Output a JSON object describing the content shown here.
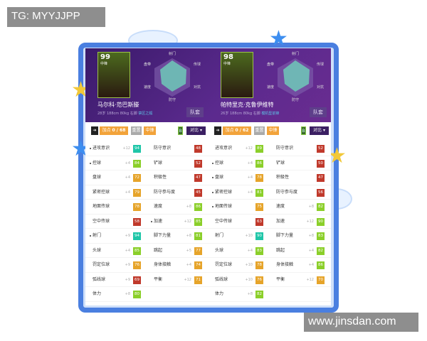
{
  "watermarks": {
    "top": "TG: MYYJJPP",
    "bottom": "www.jinsdan.com"
  },
  "colors": {
    "teal": "#1fc6a8",
    "green": "#8bcf2a",
    "orange": "#e6a42a",
    "red": "#c0392b",
    "header": "#4b2377",
    "frame": "#4a7fe0"
  },
  "radar_labels": [
    "射门",
    "传球",
    "对抗",
    "防守",
    "速度",
    "盘带"
  ],
  "players": [
    {
      "rating": "99",
      "position": "中锋",
      "name": "马尔科·范巴斯滕",
      "info": "28岁 188cm 80kg 右脚",
      "style": "禁区之狐",
      "team_button": "队套",
      "controls": {
        "add_label": "加点",
        "add_value": "0 / 68",
        "reset": "重置",
        "role": "中锋",
        "b": "B",
        "compare": "对比 ▾"
      },
      "stats": [
        [
          {
            "n": "进攻意识",
            "b": "+12",
            "v": 94,
            "c": "teal",
            "dot": true
          },
          {
            "n": "防守意识",
            "b": "",
            "v": 48,
            "c": "red"
          }
        ],
        [
          {
            "n": "控球",
            "b": "+4",
            "v": 84,
            "c": "green",
            "dot": true
          },
          {
            "n": "铲球",
            "b": "",
            "v": 52,
            "c": "red"
          }
        ],
        [
          {
            "n": "盘球",
            "b": "+4",
            "v": 72,
            "c": "orange"
          },
          {
            "n": "积极性",
            "b": "",
            "v": 47,
            "c": "red"
          }
        ],
        [
          {
            "n": "紧密控球",
            "b": "+4",
            "v": 79,
            "c": "orange"
          },
          {
            "n": "防守参与度",
            "b": "",
            "v": 45,
            "c": "red"
          }
        ],
        [
          {
            "n": "地面传球",
            "b": "",
            "v": 78,
            "c": "orange"
          },
          {
            "n": "速度",
            "b": "+8",
            "v": 86,
            "c": "green"
          }
        ],
        [
          {
            "n": "空中传球",
            "b": "",
            "v": 58,
            "c": "red"
          },
          {
            "n": "加速",
            "b": "+12",
            "v": 85,
            "c": "green",
            "dot": true
          }
        ],
        [
          {
            "n": "射门",
            "b": "+9",
            "v": 94,
            "c": "teal",
            "dot": true
          },
          {
            "n": "脚下力量",
            "b": "+8",
            "v": 81,
            "c": "green"
          }
        ],
        [
          {
            "n": "头球",
            "b": "+4",
            "v": 85,
            "c": "green"
          },
          {
            "n": "跳起",
            "b": "+5",
            "v": 77,
            "c": "orange"
          }
        ],
        [
          {
            "n": "罚定位球",
            "b": "+9",
            "v": 76,
            "c": "orange"
          },
          {
            "n": "身体接触",
            "b": "+4",
            "v": 74,
            "c": "orange"
          }
        ],
        [
          {
            "n": "弧线球",
            "b": "+9",
            "v": 69,
            "c": "red"
          },
          {
            "n": "平衡",
            "b": "+12",
            "v": 71,
            "c": "orange"
          }
        ],
        [
          {
            "n": "体力",
            "b": "+8",
            "v": 80,
            "c": "green"
          },
          null
        ]
      ]
    },
    {
      "rating": "98",
      "position": "中锋",
      "name": "帕特里克·克鲁伊维特",
      "info": "26岁 188cm 80kg 右脚",
      "style": "模机型前锋",
      "team_button": "队套",
      "controls": {
        "add_label": "加点",
        "add_value": "0 / 62",
        "reset": "重置",
        "role": "中锋",
        "b": "B",
        "compare": "对比 ▾"
      },
      "stats": [
        [
          {
            "n": "进攻意识",
            "b": "+12",
            "v": 89,
            "c": "green"
          },
          {
            "n": "防守意识",
            "b": "",
            "v": 52,
            "c": "red"
          }
        ],
        [
          {
            "n": "控球",
            "b": "+4",
            "v": 86,
            "c": "green",
            "dot": true
          },
          {
            "n": "铲球",
            "b": "",
            "v": 50,
            "c": "red"
          }
        ],
        [
          {
            "n": "盘球",
            "b": "+4",
            "v": 78,
            "c": "orange",
            "dot": true
          },
          {
            "n": "积极性",
            "b": "",
            "v": 47,
            "c": "red"
          }
        ],
        [
          {
            "n": "紧密控球",
            "b": "+4",
            "v": 81,
            "c": "green",
            "dot": true
          },
          {
            "n": "防守参与度",
            "b": "",
            "v": 56,
            "c": "red"
          }
        ],
        [
          {
            "n": "地面传球",
            "b": "",
            "v": 75,
            "c": "orange",
            "dot": true
          },
          {
            "n": "速度",
            "b": "+8",
            "v": 82,
            "c": "green"
          }
        ],
        [
          {
            "n": "空中传球",
            "b": "",
            "v": 63,
            "c": "red"
          },
          {
            "n": "加速",
            "b": "+12",
            "v": 90,
            "c": "green"
          }
        ],
        [
          {
            "n": "射门",
            "b": "+10",
            "v": 90,
            "c": "teal"
          },
          {
            "n": "脚下力量",
            "b": "+8",
            "v": 83,
            "c": "green"
          }
        ],
        [
          {
            "n": "头球",
            "b": "+4",
            "v": 83,
            "c": "green"
          },
          {
            "n": "跳起",
            "b": "+4",
            "v": 82,
            "c": "green"
          }
        ],
        [
          {
            "n": "罚定位球",
            "b": "+10",
            "v": 78,
            "c": "orange"
          },
          {
            "n": "身体接触",
            "b": "+4",
            "v": 86,
            "c": "green"
          }
        ],
        [
          {
            "n": "弧线球",
            "b": "+10",
            "v": 76,
            "c": "orange"
          },
          {
            "n": "平衡",
            "b": "+12",
            "v": 70,
            "c": "orange"
          }
        ],
        [
          {
            "n": "体力",
            "b": "+8",
            "v": 82,
            "c": "green"
          },
          null
        ]
      ]
    }
  ]
}
